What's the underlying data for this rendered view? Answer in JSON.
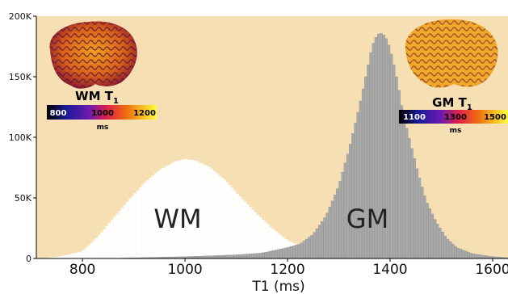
{
  "chart_data": {
    "type": "bar",
    "xlabel": "T1 (ms)",
    "ylabel": "",
    "xlim": [
      710,
      1630
    ],
    "ylim": [
      0,
      200000
    ],
    "x_ticks": [
      800,
      1000,
      1200,
      1400,
      1600
    ],
    "y_ticks": [
      0,
      50000,
      100000,
      150000,
      200000
    ],
    "y_tick_labels": [
      "0",
      "50K",
      "100K",
      "150K",
      "200K"
    ],
    "grid": false,
    "background_color": "#f6dfb2",
    "series": [
      {
        "label": "WM",
        "color": "#ffffff",
        "points": [
          [
            720,
            0
          ],
          [
            760,
            2000
          ],
          [
            800,
            6000
          ],
          [
            830,
            18000
          ],
          [
            860,
            33000
          ],
          [
            890,
            48000
          ],
          [
            920,
            62000
          ],
          [
            950,
            73000
          ],
          [
            980,
            80000
          ],
          [
            1000,
            82000
          ],
          [
            1020,
            81000
          ],
          [
            1050,
            75000
          ],
          [
            1080,
            64000
          ],
          [
            1110,
            50000
          ],
          [
            1140,
            37000
          ],
          [
            1170,
            25000
          ],
          [
            1200,
            15000
          ],
          [
            1230,
            9000
          ],
          [
            1260,
            5000
          ],
          [
            1300,
            2500
          ],
          [
            1350,
            1000
          ],
          [
            1400,
            500
          ],
          [
            1460,
            0
          ]
        ]
      },
      {
        "label": "GM",
        "color": "#a8a8a8",
        "points": [
          [
            840,
            0
          ],
          [
            900,
            500
          ],
          [
            1000,
            1500
          ],
          [
            1100,
            3000
          ],
          [
            1150,
            4500
          ],
          [
            1200,
            9000
          ],
          [
            1225,
            12000
          ],
          [
            1250,
            20000
          ],
          [
            1275,
            35000
          ],
          [
            1300,
            60000
          ],
          [
            1320,
            90000
          ],
          [
            1340,
            125000
          ],
          [
            1355,
            155000
          ],
          [
            1365,
            175000
          ],
          [
            1375,
            185000
          ],
          [
            1385,
            186000
          ],
          [
            1395,
            180000
          ],
          [
            1405,
            165000
          ],
          [
            1415,
            145000
          ],
          [
            1425,
            120000
          ],
          [
            1440,
            95000
          ],
          [
            1455,
            70000
          ],
          [
            1470,
            48000
          ],
          [
            1490,
            30000
          ],
          [
            1510,
            17000
          ],
          [
            1530,
            9000
          ],
          [
            1560,
            4000
          ],
          [
            1600,
            1500
          ],
          [
            1630,
            500
          ]
        ]
      }
    ],
    "insets": [
      {
        "label": "WM T",
        "sub": "1",
        "unit": "ms",
        "ticks": [
          "800",
          "1000",
          "1200"
        ],
        "tick_colors": [
          "#ffffff",
          "#000000",
          "#000000"
        ]
      },
      {
        "label": "GM T",
        "sub": "1",
        "unit": "ms",
        "ticks": [
          "1100",
          "1300",
          "1500"
        ],
        "tick_colors": [
          "#ffffff",
          "#000000",
          "#000000"
        ]
      }
    ]
  }
}
